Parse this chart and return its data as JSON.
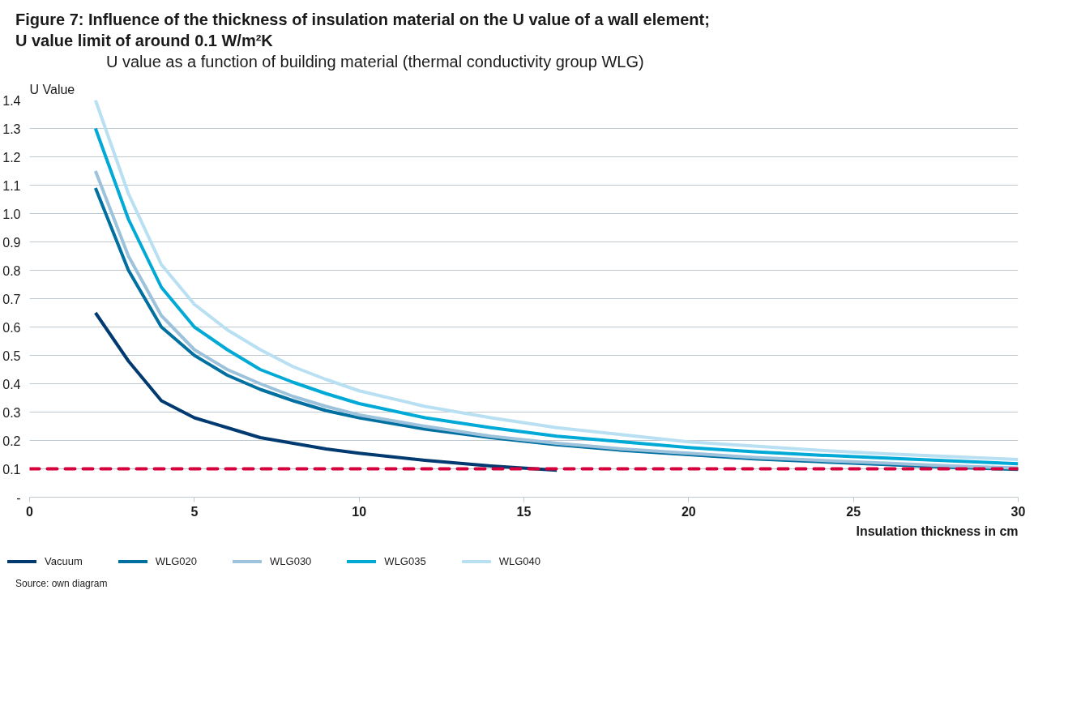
{
  "chart_data": {
    "type": "line",
    "title": "Figure 7:   Influence of the thickness of insulation material on the U value of a wall element;\nU value limit of around 0.1 W/m²K",
    "subtitle": "U value as a function of building material (thermal conductivity group WLG)",
    "ylabel": "U Value",
    "xlabel": "Insulation thickness in cm",
    "annotations": [
      "Source: own diagram"
    ],
    "xlim": [
      0,
      30
    ],
    "xticks": [
      0,
      5,
      10,
      15,
      20,
      25,
      30
    ],
    "ylim": [
      0,
      1.4
    ],
    "yticks": [
      {
        "value": 0,
        "label": "-"
      },
      0.1,
      0.2,
      0.3,
      0.4,
      0.5,
      0.6,
      0.7,
      0.8,
      0.9,
      {
        "value": 1.0,
        "label": "1.0"
      },
      1.1,
      1.2,
      1.3,
      1.4
    ],
    "grid": "y",
    "legend": "bottom",
    "marker": "none",
    "line_style": "solid",
    "ref_lines": [
      {
        "axis": "y",
        "value": 0.1,
        "label": null,
        "color": "#d6003c",
        "line_style": "dashed"
      }
    ],
    "series": [
      {
        "name": "Vacuum",
        "color": "#003a70",
        "x": [
          2,
          3,
          4,
          5,
          6,
          7,
          8,
          9,
          10,
          12,
          14,
          16
        ],
        "values": [
          0.65,
          0.48,
          0.34,
          0.28,
          0.245,
          0.21,
          0.19,
          0.17,
          0.155,
          0.13,
          0.11,
          0.095
        ]
      },
      {
        "name": "WLG020",
        "color": "#0070a0",
        "x": [
          2,
          3,
          4,
          5,
          6,
          7,
          8,
          9,
          10,
          12,
          14,
          16,
          18,
          20,
          22,
          24,
          26,
          28,
          30
        ],
        "values": [
          1.09,
          0.8,
          0.6,
          0.5,
          0.43,
          0.38,
          0.34,
          0.305,
          0.28,
          0.24,
          0.21,
          0.185,
          0.165,
          0.15,
          0.135,
          0.125,
          0.115,
          0.105,
          0.098
        ]
      },
      {
        "name": "WLG030",
        "color": "#9dc3dc",
        "x": [
          2,
          3,
          4,
          5,
          6,
          7,
          8,
          9,
          10,
          12,
          14,
          16,
          18,
          20,
          22,
          24,
          26,
          28,
          30
        ],
        "values": [
          1.15,
          0.85,
          0.64,
          0.52,
          0.45,
          0.4,
          0.355,
          0.32,
          0.29,
          0.25,
          0.215,
          0.19,
          0.17,
          0.155,
          0.14,
          0.13,
          0.12,
          0.11,
          0.103
        ]
      },
      {
        "name": "WLG035",
        "color": "#00a9d6",
        "x": [
          2,
          3,
          4,
          5,
          6,
          7,
          8,
          9,
          10,
          12,
          14,
          16,
          18,
          20,
          22,
          24,
          26,
          28,
          30
        ],
        "values": [
          1.3,
          0.98,
          0.74,
          0.6,
          0.52,
          0.45,
          0.405,
          0.365,
          0.33,
          0.28,
          0.245,
          0.215,
          0.195,
          0.175,
          0.16,
          0.148,
          0.138,
          0.128,
          0.118
        ]
      },
      {
        "name": "WLG040",
        "color": "#b8e0f2",
        "x": [
          2,
          3,
          4,
          5,
          6,
          7,
          8,
          9,
          10,
          12,
          14,
          16,
          18,
          20,
          22,
          24,
          26,
          28,
          30
        ],
        "values": [
          1.4,
          1.07,
          0.82,
          0.68,
          0.59,
          0.52,
          0.46,
          0.415,
          0.375,
          0.32,
          0.28,
          0.245,
          0.22,
          0.195,
          0.18,
          0.165,
          0.153,
          0.143,
          0.133
        ]
      }
    ]
  }
}
